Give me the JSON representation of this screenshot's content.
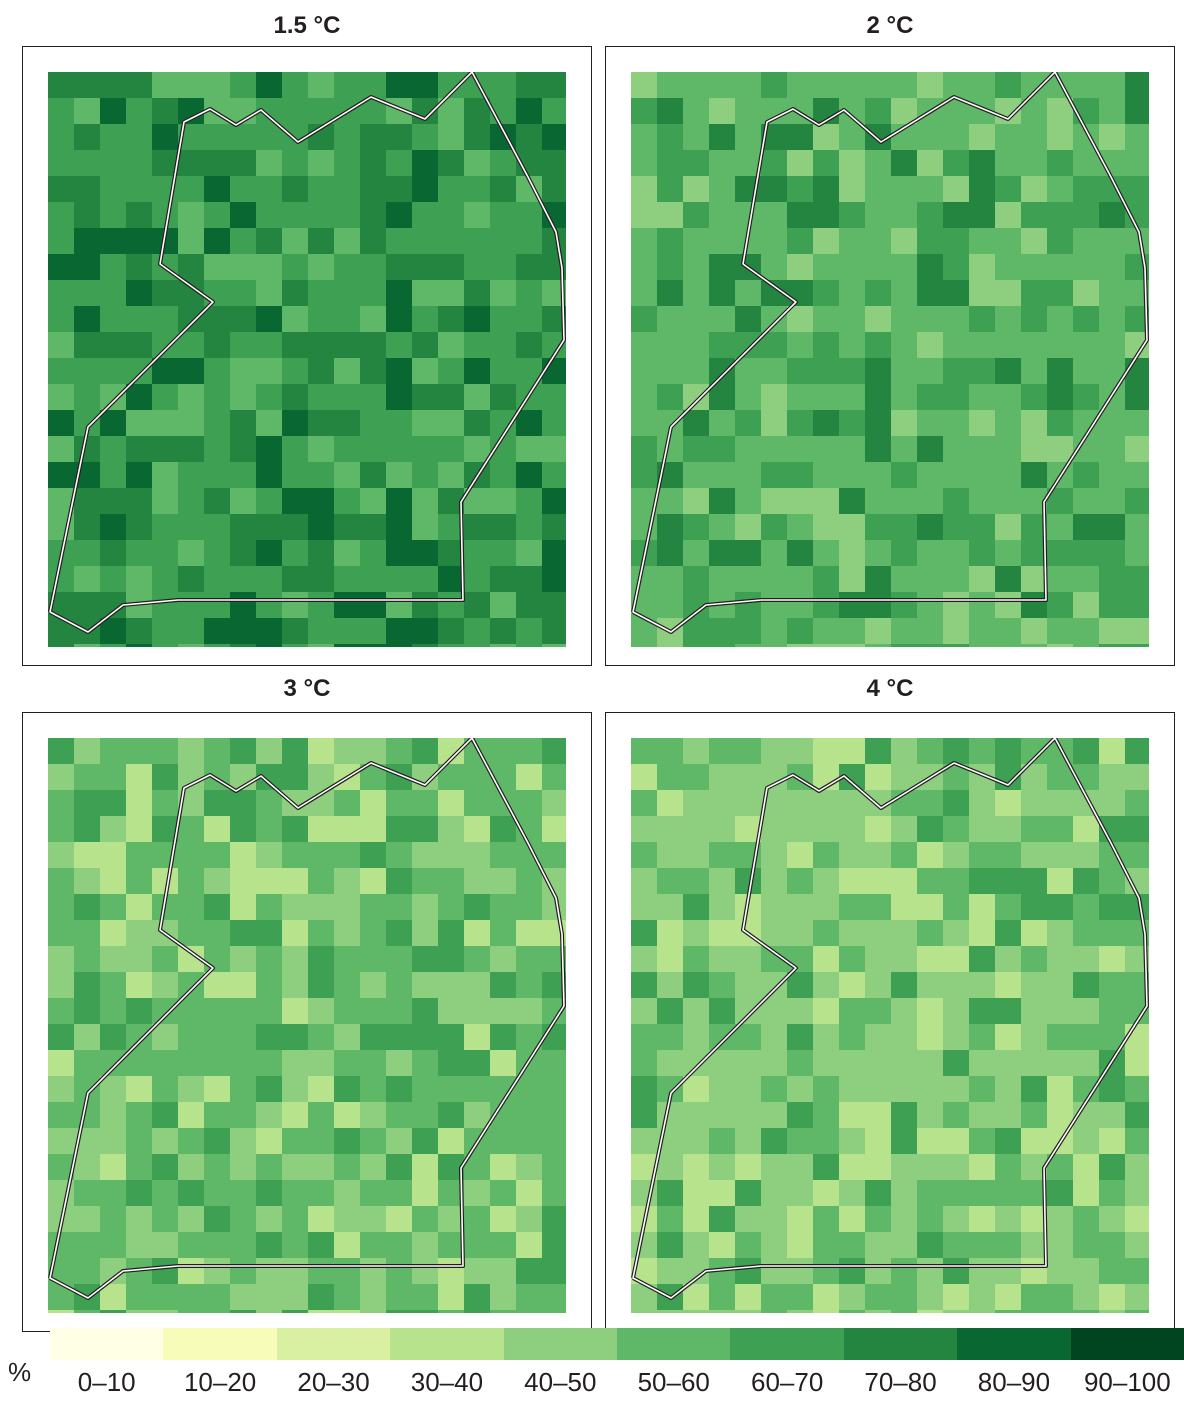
{
  "panels": [
    {
      "title": "1.5 °C",
      "warming": 1.5
    },
    {
      "title": "2 °C",
      "warming": 2
    },
    {
      "title": "3 °C",
      "warming": 3
    },
    {
      "title": "4 °C",
      "warming": 4
    }
  ],
  "legend": {
    "unit": "%",
    "classes": [
      {
        "label": "0–10",
        "color": "#ffffe5"
      },
      {
        "label": "10–20",
        "color": "#f7fcb9"
      },
      {
        "label": "20–30",
        "color": "#d9f0a3"
      },
      {
        "label": "30–40",
        "color": "#b6e38c"
      },
      {
        "label": "40–50",
        "color": "#8dcf7e"
      },
      {
        "label": "50–60",
        "color": "#5fb868"
      },
      {
        "label": "60–70",
        "color": "#3ea052"
      },
      {
        "label": "70–80",
        "color": "#23853f"
      },
      {
        "label": "80–90",
        "color": "#096832"
      },
      {
        "label": "90–100",
        "color": "#00451f"
      }
    ]
  },
  "boundary": {
    "stroke": "#ffffff",
    "outline": "#231f20"
  },
  "palette_by_panel": [
    [
      "#3ea052",
      "#23853f",
      "#096832",
      "#5fb868"
    ],
    [
      "#5fb868",
      "#3ea052",
      "#23853f",
      "#8dcf7e"
    ],
    [
      "#5fb868",
      "#8dcf7e",
      "#3ea052",
      "#b6e38c"
    ],
    [
      "#8dcf7e",
      "#5fb868",
      "#b6e38c",
      "#3ea052"
    ]
  ]
}
